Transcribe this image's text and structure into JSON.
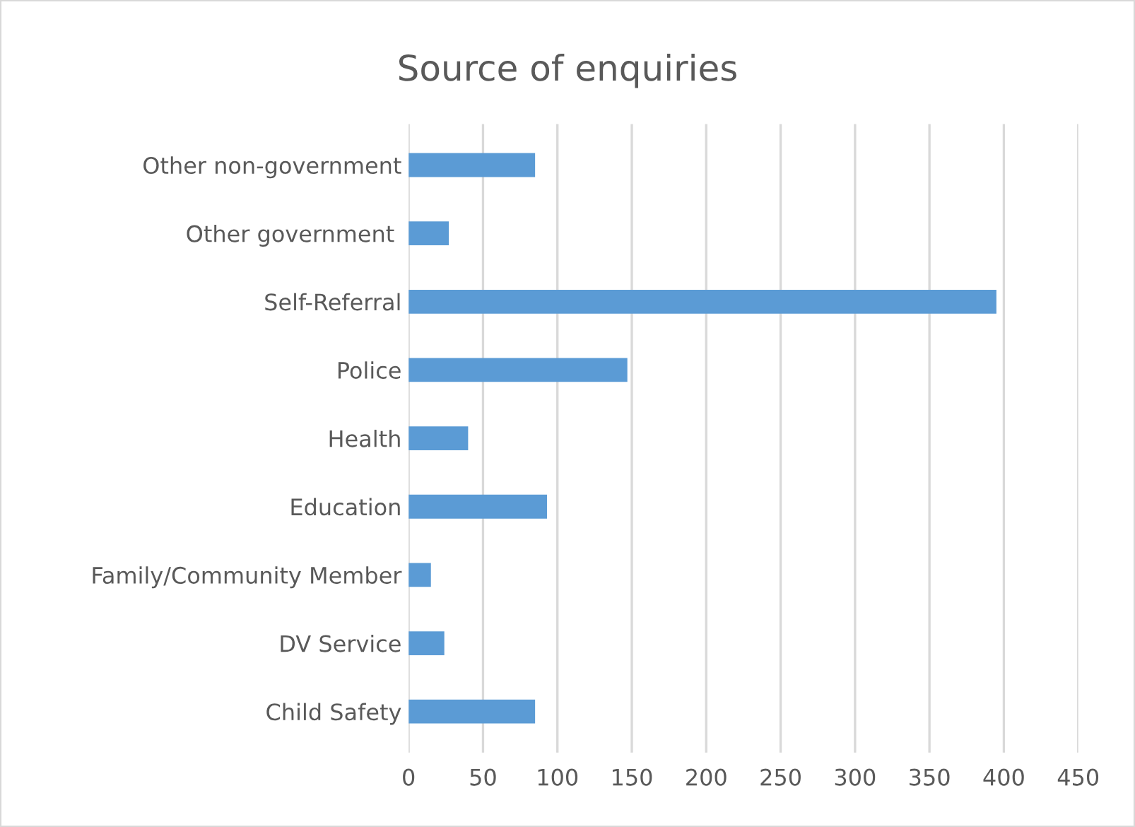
{
  "chart_data": {
    "type": "bar",
    "orientation": "horizontal",
    "title": "Source of enquiries",
    "categories": [
      "Other non-government",
      "Other government ",
      "Self-Referral",
      "Police",
      "Health",
      "Education",
      "Family/Community Member",
      "DV Service",
      "Child Safety"
    ],
    "values": [
      85,
      27,
      395,
      147,
      40,
      93,
      15,
      24,
      85
    ],
    "color": "#5b9bd5",
    "xlim": [
      0,
      450
    ],
    "xticks": [
      0,
      50,
      100,
      150,
      200,
      250,
      300,
      350,
      400,
      450
    ],
    "grid": "x"
  }
}
